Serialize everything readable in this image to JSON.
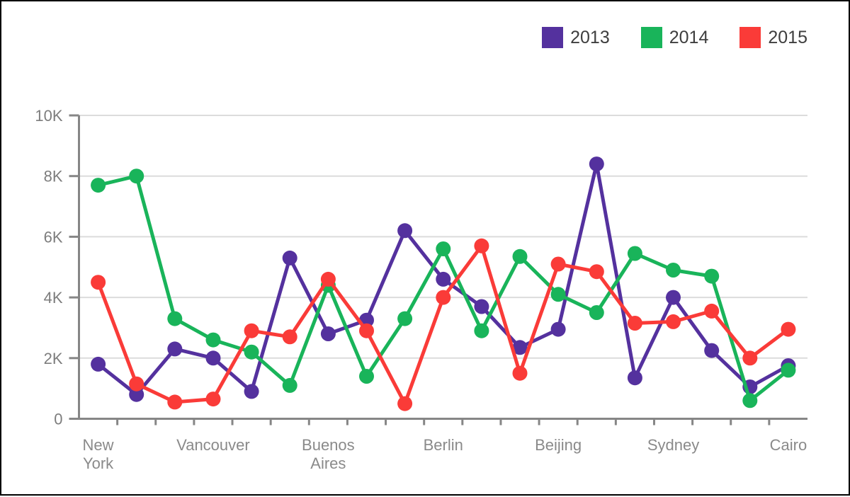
{
  "page": {
    "background": "#ffffff",
    "border_color": "#000000"
  },
  "legend": {
    "position": "top-right",
    "items": [
      "2013",
      "2014",
      "2015"
    ]
  },
  "chart_data": {
    "type": "line",
    "title": "",
    "x_categories": [
      "New York",
      "Vancouver",
      "Buenos Aires",
      "Berlin",
      "Beijing",
      "Sydney",
      "Cairo"
    ],
    "points_per_label": 3,
    "x_label_indices": [
      0,
      3,
      6,
      9,
      12,
      15,
      18
    ],
    "num_points": 19,
    "series": [
      {
        "name": "2013",
        "color": "#54319e",
        "values": [
          1800,
          800,
          2300,
          2000,
          900,
          5300,
          2800,
          3250,
          6200,
          4600,
          3700,
          2350,
          2950,
          8400,
          1350,
          4000,
          2250,
          1050,
          1750
        ]
      },
      {
        "name": "2014",
        "color": "#19b45a",
        "values": [
          7700,
          8000,
          3300,
          2600,
          2200,
          1100,
          4400,
          1400,
          3300,
          5600,
          2900,
          5350,
          4100,
          3500,
          5450,
          4900,
          4700,
          600,
          1600
        ]
      },
      {
        "name": "2015",
        "color": "#fa3b38",
        "values": [
          4500,
          1150,
          550,
          650,
          2900,
          2700,
          4600,
          2900,
          500,
          4000,
          5700,
          1500,
          5100,
          4850,
          3150,
          3200,
          3550,
          2000,
          2950
        ]
      }
    ],
    "ylim": [
      0,
      10000
    ],
    "y_ticks": [
      {
        "value": 0,
        "label": "0"
      },
      {
        "value": 2000,
        "label": "2K"
      },
      {
        "value": 4000,
        "label": "4K"
      },
      {
        "value": 6000,
        "label": "6K"
      },
      {
        "value": 8000,
        "label": "8K"
      },
      {
        "value": 10000,
        "label": "10K"
      }
    ],
    "grid": true,
    "legend_position": "top-right",
    "colors": {
      "axis": "#868686",
      "gridline": "#dcdcdc",
      "y_tick_label": "#7d7d7d",
      "x_tick_label": "#8a8a8a",
      "legend_text": "#3e3e3e"
    }
  }
}
